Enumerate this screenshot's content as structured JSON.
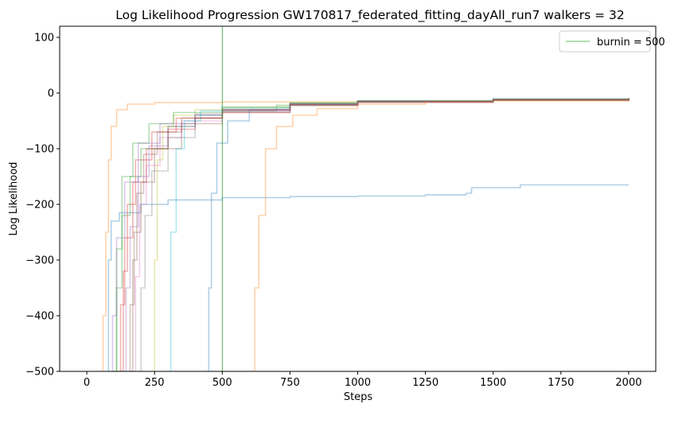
{
  "chart_data": {
    "type": "line",
    "title": "Log Likelihood Progression GW170817_federated_fitting_dayAll_run7 walkers = 32",
    "xlabel": "Steps",
    "ylabel": "Log Likelihood",
    "xlim": [
      -100,
      2100
    ],
    "ylim": [
      -500,
      120
    ],
    "xticks": [
      0,
      250,
      500,
      750,
      1000,
      1250,
      1500,
      1750,
      2000
    ],
    "yticks": [
      100,
      0,
      -100,
      -200,
      -300,
      -400,
      -500
    ],
    "xtick_labels": [
      "0",
      "250",
      "500",
      "750",
      "1000",
      "1250",
      "1500",
      "1750",
      "2000"
    ],
    "ytick_labels": [
      "100",
      "0",
      "−100",
      "−200",
      "−300",
      "−400",
      "−500"
    ],
    "grid": false,
    "legend_position": "top-right",
    "walkers": 32,
    "burnin": {
      "label": "burnin = 500",
      "x": 500,
      "color": "#2ca02c"
    },
    "series_colors": [
      "#1f77b4",
      "#ff7f0e",
      "#2ca02c",
      "#d62728",
      "#9467bd",
      "#8c564b",
      "#e377c2",
      "#7f7f7f",
      "#bcbd22",
      "#17becf"
    ],
    "series": [
      {
        "values_xy": [
          [
            70,
            -500
          ],
          [
            80,
            -300
          ],
          [
            90,
            -230
          ],
          [
            120,
            -215
          ],
          [
            200,
            -200
          ],
          [
            300,
            -192
          ],
          [
            500,
            -188
          ],
          [
            750,
            -186
          ],
          [
            1000,
            -185
          ],
          [
            1250,
            -183
          ],
          [
            1400,
            -180
          ],
          [
            1420,
            -170
          ],
          [
            1600,
            -165
          ],
          [
            2000,
            -165
          ]
        ]
      },
      {
        "values_xy": [
          [
            50,
            -500
          ],
          [
            60,
            -400
          ],
          [
            70,
            -250
          ],
          [
            80,
            -120
          ],
          [
            90,
            -60
          ],
          [
            110,
            -30
          ],
          [
            150,
            -20
          ],
          [
            250,
            -17
          ],
          [
            500,
            -16
          ],
          [
            1000,
            -15
          ],
          [
            1500,
            -14
          ],
          [
            2000,
            -13
          ]
        ]
      },
      {
        "values_xy": [
          [
            95,
            -500
          ],
          [
            110,
            -350
          ],
          [
            130,
            -220
          ],
          [
            160,
            -150
          ],
          [
            200,
            -100
          ],
          [
            300,
            -60
          ],
          [
            400,
            -40
          ],
          [
            500,
            -32
          ],
          [
            700,
            -22
          ],
          [
            1000,
            -16
          ],
          [
            1500,
            -13
          ],
          [
            2000,
            -11
          ]
        ]
      },
      {
        "values_xy": [
          [
            110,
            -500
          ],
          [
            125,
            -380
          ],
          [
            140,
            -260
          ],
          [
            170,
            -160
          ],
          [
            220,
            -100
          ],
          [
            300,
            -65
          ],
          [
            400,
            -45
          ],
          [
            500,
            -35
          ],
          [
            750,
            -22
          ],
          [
            1000,
            -17
          ],
          [
            1500,
            -13
          ],
          [
            2000,
            -10
          ]
        ]
      },
      {
        "values_xy": [
          [
            130,
            -500
          ],
          [
            145,
            -350
          ],
          [
            160,
            -240
          ],
          [
            190,
            -150
          ],
          [
            230,
            -95
          ],
          [
            300,
            -60
          ],
          [
            400,
            -40
          ],
          [
            500,
            -30
          ],
          [
            750,
            -20
          ],
          [
            1000,
            -15
          ],
          [
            1500,
            -12
          ],
          [
            2000,
            -10
          ]
        ]
      },
      {
        "values_xy": [
          [
            150,
            -500
          ],
          [
            160,
            -380
          ],
          [
            175,
            -250
          ],
          [
            200,
            -160
          ],
          [
            250,
            -100
          ],
          [
            350,
            -55
          ],
          [
            500,
            -35
          ],
          [
            750,
            -22
          ],
          [
            1000,
            -16
          ],
          [
            1500,
            -12
          ],
          [
            2000,
            -10
          ]
        ]
      },
      {
        "values_xy": [
          [
            170,
            -500
          ],
          [
            180,
            -330
          ],
          [
            195,
            -200
          ],
          [
            220,
            -130
          ],
          [
            270,
            -80
          ],
          [
            350,
            -50
          ],
          [
            500,
            -32
          ],
          [
            750,
            -20
          ],
          [
            1000,
            -15
          ],
          [
            1500,
            -11
          ],
          [
            2000,
            -9
          ]
        ]
      },
      {
        "values_xy": [
          [
            190,
            -500
          ],
          [
            200,
            -350
          ],
          [
            215,
            -220
          ],
          [
            240,
            -140
          ],
          [
            300,
            -80
          ],
          [
            400,
            -45
          ],
          [
            500,
            -33
          ],
          [
            750,
            -21
          ],
          [
            1000,
            -15
          ],
          [
            1500,
            -12
          ],
          [
            2000,
            -10
          ]
        ]
      },
      {
        "values_xy": [
          [
            240,
            -500
          ],
          [
            250,
            -300
          ],
          [
            260,
            -120
          ],
          [
            280,
            -60
          ],
          [
            320,
            -40
          ],
          [
            400,
            -30
          ],
          [
            500,
            -26
          ],
          [
            750,
            -18
          ],
          [
            1000,
            -14
          ],
          [
            1500,
            -11
          ],
          [
            2000,
            -9
          ]
        ]
      },
      {
        "values_xy": [
          [
            300,
            -500
          ],
          [
            310,
            -250
          ],
          [
            330,
            -100
          ],
          [
            360,
            -50
          ],
          [
            420,
            -32
          ],
          [
            500,
            -27
          ],
          [
            750,
            -18
          ],
          [
            1000,
            -14
          ],
          [
            1500,
            -11
          ],
          [
            2000,
            -9
          ]
        ]
      },
      {
        "values_xy": [
          [
            440,
            -500
          ],
          [
            450,
            -350
          ],
          [
            460,
            -180
          ],
          [
            480,
            -90
          ],
          [
            520,
            -50
          ],
          [
            600,
            -30
          ],
          [
            750,
            -20
          ],
          [
            1000,
            -15
          ],
          [
            1500,
            -11
          ],
          [
            2000,
            -9
          ]
        ]
      },
      {
        "values_xy": [
          [
            610,
            -500
          ],
          [
            620,
            -350
          ],
          [
            635,
            -220
          ],
          [
            660,
            -100
          ],
          [
            700,
            -60
          ],
          [
            760,
            -40
          ],
          [
            850,
            -28
          ],
          [
            1000,
            -20
          ],
          [
            1250,
            -15
          ],
          [
            1500,
            -12
          ],
          [
            2000,
            -10
          ]
        ]
      },
      {
        "values_xy": [
          [
            100,
            -500
          ],
          [
            110,
            -280
          ],
          [
            130,
            -150
          ],
          [
            170,
            -90
          ],
          [
            230,
            -55
          ],
          [
            320,
            -35
          ],
          [
            500,
            -25
          ],
          [
            750,
            -18
          ],
          [
            1000,
            -14
          ],
          [
            1500,
            -11
          ],
          [
            2000,
            -9
          ]
        ]
      },
      {
        "values_xy": [
          [
            120,
            -500
          ],
          [
            135,
            -320
          ],
          [
            150,
            -200
          ],
          [
            180,
            -120
          ],
          [
            240,
            -70
          ],
          [
            330,
            -45
          ],
          [
            500,
            -30
          ],
          [
            750,
            -20
          ],
          [
            1000,
            -15
          ],
          [
            1500,
            -12
          ],
          [
            2000,
            -10
          ]
        ]
      },
      {
        "values_xy": [
          [
            85,
            -500
          ],
          [
            95,
            -400
          ],
          [
            110,
            -260
          ],
          [
            140,
            -160
          ],
          [
            190,
            -90
          ],
          [
            270,
            -55
          ],
          [
            400,
            -38
          ],
          [
            500,
            -30
          ],
          [
            750,
            -20
          ],
          [
            1000,
            -15
          ],
          [
            1500,
            -12
          ],
          [
            2000,
            -10
          ]
        ]
      },
      {
        "values_xy": [
          [
            160,
            -500
          ],
          [
            170,
            -300
          ],
          [
            185,
            -180
          ],
          [
            210,
            -110
          ],
          [
            260,
            -70
          ],
          [
            350,
            -45
          ],
          [
            500,
            -30
          ],
          [
            750,
            -20
          ],
          [
            1000,
            -15
          ],
          [
            1500,
            -12
          ],
          [
            2000,
            -10
          ]
        ]
      }
    ]
  }
}
